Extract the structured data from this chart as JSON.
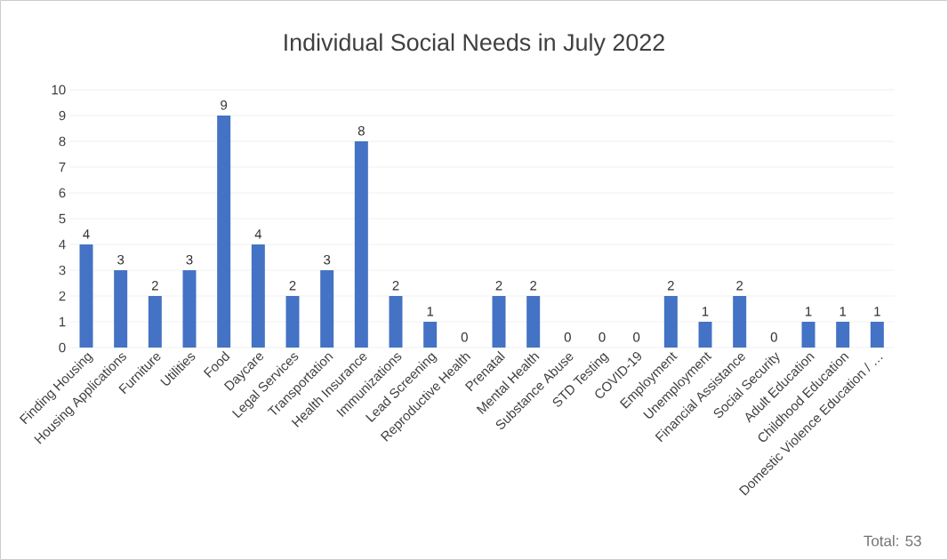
{
  "chart_data": {
    "type": "bar",
    "title": "Individual Social Needs in July 2022",
    "categories": [
      "Finding Housing",
      "Housing Applications",
      "Furniture",
      "Utilities",
      "Food",
      "Daycare",
      "Legal Services",
      "Transportation",
      "Health Insurance",
      "Immunizations",
      "Lead Screening",
      "Reproductive Health",
      "Prenatal",
      "Mental Health",
      "Substance Abuse",
      "STD Testing",
      "COVID-19",
      "Employment",
      "Unemployment",
      "Financial Assistance",
      "Social Security",
      "Adult Education",
      "Childhood Education",
      "Domestic Violence Education / …"
    ],
    "values": [
      4,
      3,
      2,
      3,
      9,
      4,
      2,
      3,
      8,
      2,
      1,
      0,
      2,
      2,
      0,
      0,
      0,
      2,
      1,
      2,
      0,
      1,
      1,
      1
    ],
    "color": "#4472c4",
    "ylim": [
      0,
      10
    ],
    "yticks": [
      0,
      1,
      2,
      3,
      4,
      5,
      6,
      7,
      8,
      9,
      10
    ],
    "grid": "y",
    "data_labels": true,
    "annotations": [
      "Total: 53"
    ]
  }
}
